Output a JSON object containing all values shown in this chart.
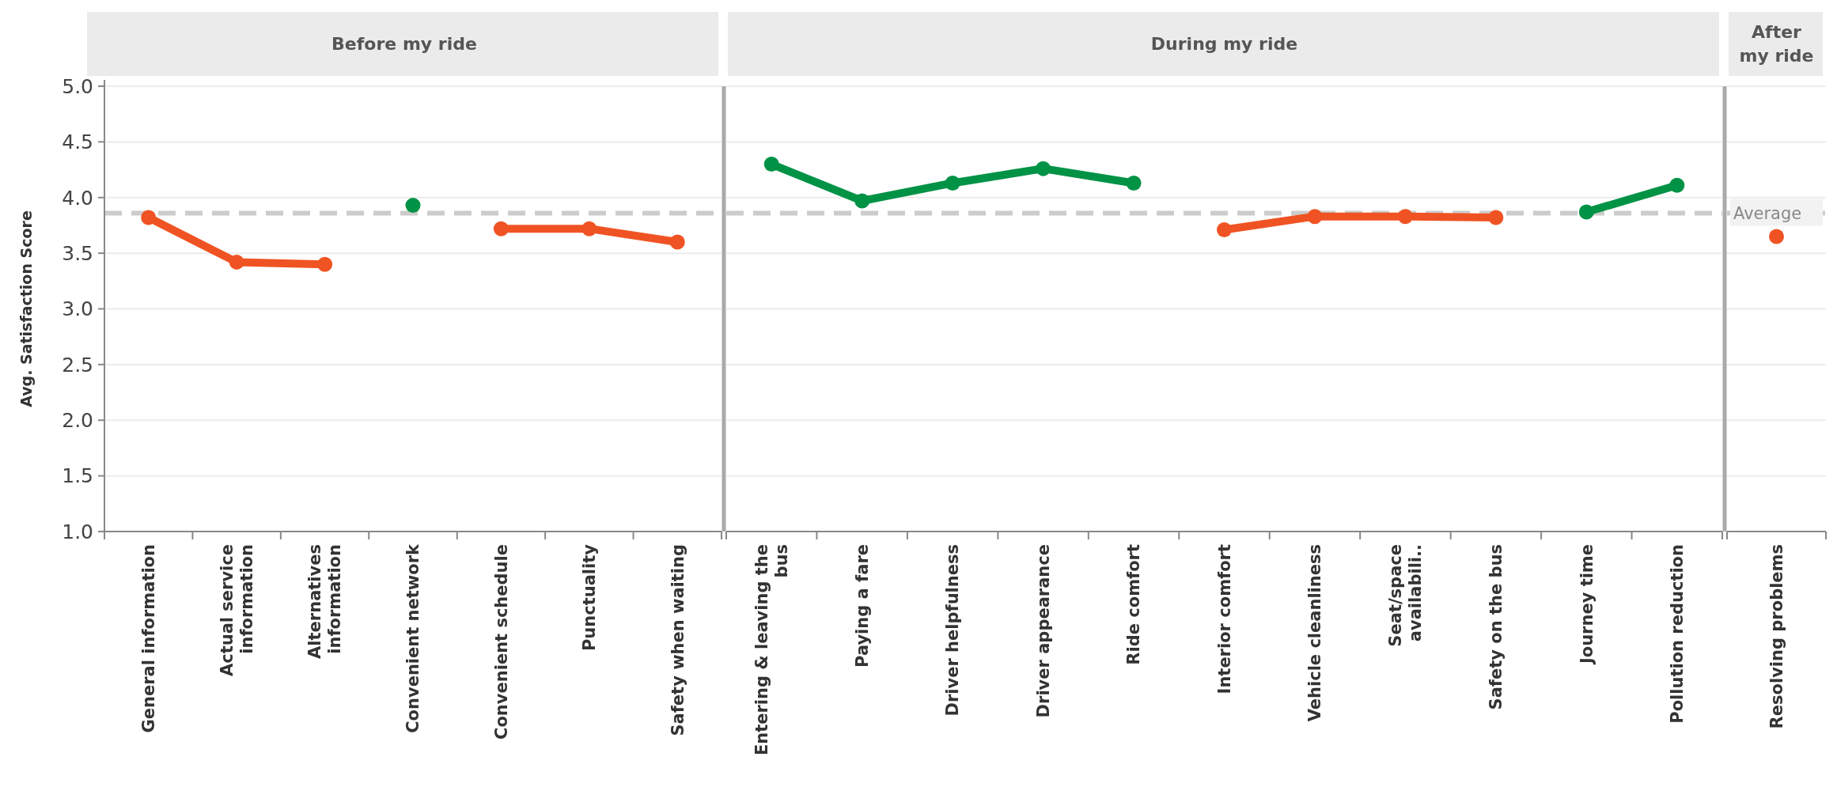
{
  "chart_data": [
    {
      "type": "line",
      "title": "Before my ride",
      "ylabel": "Avg. Satisfaction Score",
      "categories": [
        "General information",
        "Actual service information",
        "Alternatives information",
        "Convenient network",
        "Convenient schedule",
        "Punctuality",
        "Safety when waiting"
      ],
      "series": [
        {
          "color": "#f05323",
          "values": [
            3.82,
            3.42,
            3.4,
            null,
            3.72,
            3.72,
            3.6
          ]
        },
        {
          "color": "#009245",
          "values": [
            null,
            null,
            null,
            3.93,
            null,
            null,
            null
          ]
        }
      ],
      "ylim": [
        1,
        5
      ],
      "yticks": [
        {
          "value": 1,
          "label": "1.0"
        },
        1.5,
        {
          "value": 2,
          "label": "2.0"
        },
        2.5,
        {
          "value": 3,
          "label": "3.0"
        },
        3.5,
        {
          "value": 4,
          "label": "4.0"
        },
        4.5,
        {
          "value": 5,
          "label": "5.0"
        }
      ],
      "grid": "y",
      "marker": "circle",
      "ref_lines": [
        {
          "axis": "y",
          "value": 3.86,
          "color": "#cccccc",
          "line_style": "dashed"
        }
      ]
    },
    {
      "type": "line",
      "title": "During my ride",
      "categories": [
        "Entering & leaving the bus",
        "Paying a fare",
        "Driver helpfulness",
        "Driver appearance",
        "Ride comfort",
        "Interior comfort",
        "Vehicle cleanliness",
        "Seat/space availabili..",
        "Safety on the bus",
        "Journey time",
        "Pollution reduction"
      ],
      "series": [
        {
          "color": "#009245",
          "values": [
            4.3,
            3.97,
            4.13,
            4.26,
            4.13,
            null,
            null,
            null,
            null,
            3.87,
            4.11
          ]
        },
        {
          "color": "#f05323",
          "values": [
            null,
            null,
            null,
            null,
            null,
            3.71,
            3.83,
            3.83,
            3.82,
            null,
            null
          ]
        }
      ],
      "ylim": [
        1,
        5
      ],
      "yticks": [
        1.0,
        1.5,
        2.0,
        2.5,
        3.0,
        3.5,
        4.0,
        4.5,
        5.0
      ],
      "grid": "y",
      "marker": "circle",
      "tick_labels": "x",
      "ref_lines": [
        {
          "axis": "y",
          "value": 3.86,
          "color": "#cccccc",
          "line_style": "dashed"
        }
      ]
    },
    {
      "type": "line",
      "title": "After my ride",
      "categories": [
        "Resolving problems"
      ],
      "series": [
        {
          "color": "#f05323",
          "values": [
            3.65
          ]
        }
      ],
      "ylim": [
        1,
        5
      ],
      "yticks": [
        1.0,
        1.5,
        2.0,
        2.5,
        3.0,
        3.5,
        4.0,
        4.5,
        5.0
      ],
      "grid": "y",
      "marker": "circle",
      "tick_labels": "x",
      "ref_lines": [
        {
          "axis": "y",
          "value": 3.86,
          "label": "Average",
          "color": "#cccccc",
          "line_style": "dashed"
        }
      ]
    }
  ]
}
